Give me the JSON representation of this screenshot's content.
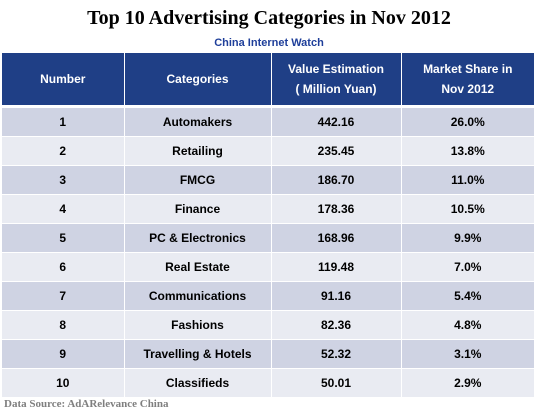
{
  "title": "Top 10 Advertising Categories in Nov 2012",
  "subtitle": "China Internet Watch",
  "source": "Data Source: AdARelevance China",
  "colors": {
    "header_bg": "#1f3f86",
    "row_dark": "#cfd3e3",
    "row_light": "#e9ebf2",
    "subtitle": "#1f3f9a"
  },
  "chart_data": {
    "type": "table",
    "title": "Top 10 Advertising Categories in Nov 2012",
    "subtitle": "China Internet Watch",
    "columns": [
      {
        "lines": [
          "Number"
        ]
      },
      {
        "lines": [
          "Categories"
        ]
      },
      {
        "lines": [
          "Value Estimation",
          "( Million Yuan)"
        ]
      },
      {
        "lines": [
          "Market Share in",
          "Nov 2012"
        ]
      }
    ],
    "rows": [
      [
        "1",
        "Automakers",
        "442.16",
        "26.0%"
      ],
      [
        "2",
        "Retailing",
        "235.45",
        "13.8%"
      ],
      [
        "3",
        "FMCG",
        "186.70",
        "11.0%"
      ],
      [
        "4",
        "Finance",
        "178.36",
        "10.5%"
      ],
      [
        "5",
        "PC & Electronics",
        "168.96",
        "9.9%"
      ],
      [
        "6",
        "Real Estate",
        "119.48",
        "7.0%"
      ],
      [
        "7",
        "Communications",
        "91.16",
        "5.4%"
      ],
      [
        "8",
        "Fashions",
        "82.36",
        "4.8%"
      ],
      [
        "9",
        "Travelling & Hotels",
        "52.32",
        "3.1%"
      ],
      [
        "10",
        "Classifieds",
        "50.01",
        "2.9%"
      ]
    ],
    "source": "Data Source: AdARelevance China"
  }
}
